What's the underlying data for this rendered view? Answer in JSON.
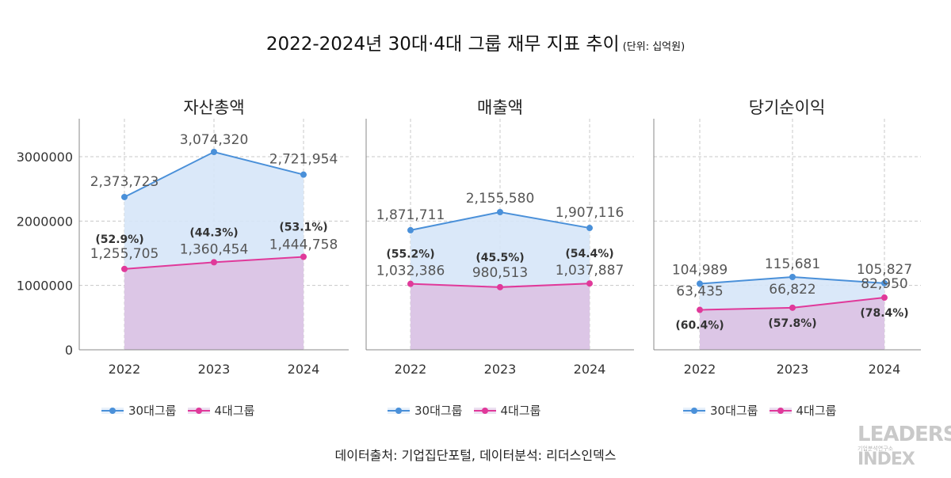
{
  "title": {
    "main": "2022-2024년 30대·4대 그룹 재무 지표 추이",
    "unit": "(단위: 십억원)"
  },
  "colors": {
    "series1": "#4a90d9",
    "series1_fill": "#d6e6f8",
    "series2": "#e0399a",
    "series2_fill": "#dcc6e6",
    "grid": "#c8c8c8",
    "axis": "#888888"
  },
  "chart_data": [
    {
      "type": "area",
      "title": "자산총액",
      "x": [
        "2022",
        "2023",
        "2024"
      ],
      "ylim": [
        0,
        3074320
      ],
      "yticks": [
        "0",
        "1000000",
        "2000000",
        "3000000"
      ],
      "yticks_values": [
        0,
        1000000,
        2000000,
        3000000
      ],
      "grid": true,
      "series": [
        {
          "name": "30대그룹",
          "values": [
            2373723,
            3074320,
            2721954
          ],
          "labels": [
            "2,373,723",
            "3,074,320",
            "2,721,954"
          ]
        },
        {
          "name": "4대그룹",
          "values": [
            1255705,
            1360454,
            1444758
          ],
          "labels": [
            "1,255,705",
            "1,360,454",
            "1,444,758"
          ]
        }
      ],
      "share_labels": [
        "(52.9%)",
        "(44.3%)",
        "(53.1%)"
      ],
      "share_position": "above"
    },
    {
      "type": "area",
      "title": "매출액",
      "x": [
        "2022",
        "2023",
        "2024"
      ],
      "ylim": [
        0,
        2155580
      ],
      "grid": true,
      "series": [
        {
          "name": "30대그룹",
          "values": [
            1871711,
            2155580,
            1907116
          ],
          "labels": [
            "1,871,711",
            "2,155,580",
            "1,907,116"
          ]
        },
        {
          "name": "4대그룹",
          "values": [
            1032386,
            980513,
            1037887
          ],
          "labels": [
            "1,032,386",
            "980,513",
            "1,037,887"
          ]
        }
      ],
      "share_labels": [
        "(55.2%)",
        "(45.5%)",
        "(54.4%)"
      ],
      "share_position": "above"
    },
    {
      "type": "area",
      "title": "당기순이익",
      "x": [
        "2022",
        "2023",
        "2024"
      ],
      "ylim": [
        0,
        115681
      ],
      "grid": true,
      "series": [
        {
          "name": "30대그룹",
          "values": [
            104989,
            115681,
            105827
          ],
          "labels": [
            "104,989",
            "115,681",
            "105,827"
          ]
        },
        {
          "name": "4대그룹",
          "values": [
            63435,
            66822,
            82950
          ],
          "labels": [
            "63,435",
            "66,822",
            "82,950"
          ]
        }
      ],
      "share_labels": [
        "(60.4%)",
        "(57.8%)",
        "(78.4%)"
      ],
      "share_position": "below"
    }
  ],
  "legend": {
    "items": [
      "30대그룹",
      "4대그룹"
    ]
  },
  "source": "데이터출처: 기업집단포털, 데이터분석: 리더스인덱스",
  "logo": {
    "line1": "LEADERS",
    "line2": "기업분석연구소",
    "line3": "INDEX"
  }
}
